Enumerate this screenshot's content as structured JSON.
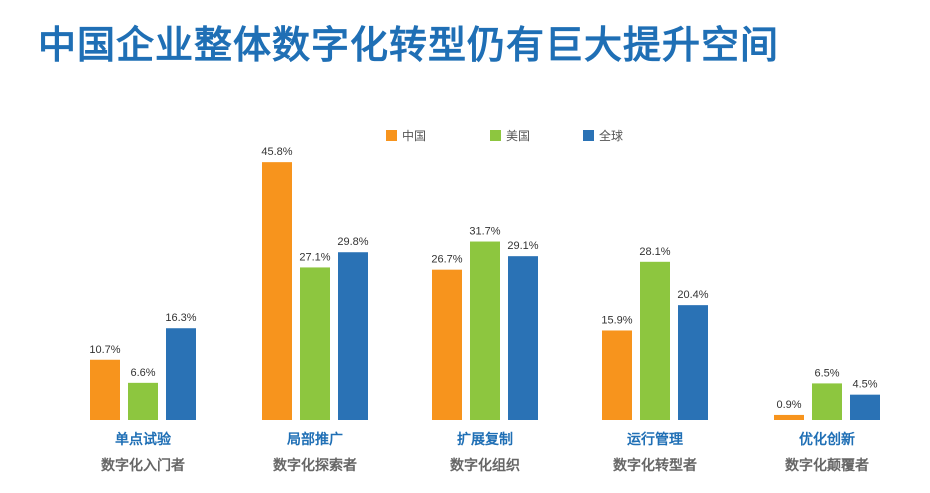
{
  "title": "中国企业整体数字化转型仍有巨大提升空间",
  "chart_data": {
    "type": "bar",
    "categories": [
      "单点试验",
      "局部推广",
      "扩展复制",
      "运行管理",
      "优化创新"
    ],
    "subcategories": [
      "数字化入门者",
      "数字化探索者",
      "数字化组织",
      "数字化转型者",
      "数字化颠覆者"
    ],
    "series": [
      {
        "name": "中国",
        "color": "#f7941d",
        "values": [
          10.7,
          45.8,
          26.7,
          15.9,
          0.9
        ]
      },
      {
        "name": "美国",
        "color": "#8dc63f",
        "values": [
          6.6,
          27.1,
          31.7,
          28.1,
          6.5
        ]
      },
      {
        "name": "全球",
        "color": "#2a72b5",
        "values": [
          16.3,
          29.8,
          29.1,
          20.4,
          4.5
        ]
      }
    ],
    "ylim": [
      0,
      50
    ],
    "unit": "%",
    "legend": "top"
  }
}
